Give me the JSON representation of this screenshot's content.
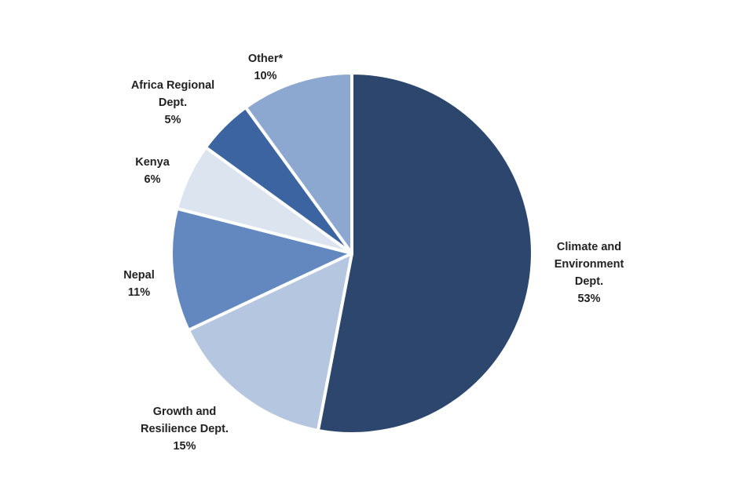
{
  "chart_data": {
    "type": "pie",
    "title": "",
    "start_angle_deg": 0,
    "direction": "clockwise",
    "slices": [
      {
        "label_lines": [
          "Climate and",
          "Environment",
          "Dept."
        ],
        "value": 53,
        "value_label": "53%",
        "color": "#2c466d"
      },
      {
        "label_lines": [
          "Growth  and",
          "Resilience Dept."
        ],
        "value": 15,
        "value_label": "15%",
        "color": "#b4c6e0"
      },
      {
        "label_lines": [
          "Nepal"
        ],
        "value": 11,
        "value_label": "11%",
        "color": "#6288bf"
      },
      {
        "label_lines": [
          "Kenya"
        ],
        "value": 6,
        "value_label": "6%",
        "color": "#dce4f0"
      },
      {
        "label_lines": [
          "Africa Regional",
          "Dept."
        ],
        "value": 5,
        "value_label": "5%",
        "color": "#3c64a0"
      },
      {
        "label_lines": [
          "Other*"
        ],
        "value": 10,
        "value_label": "10%",
        "color": "#8ca8d0"
      }
    ]
  }
}
